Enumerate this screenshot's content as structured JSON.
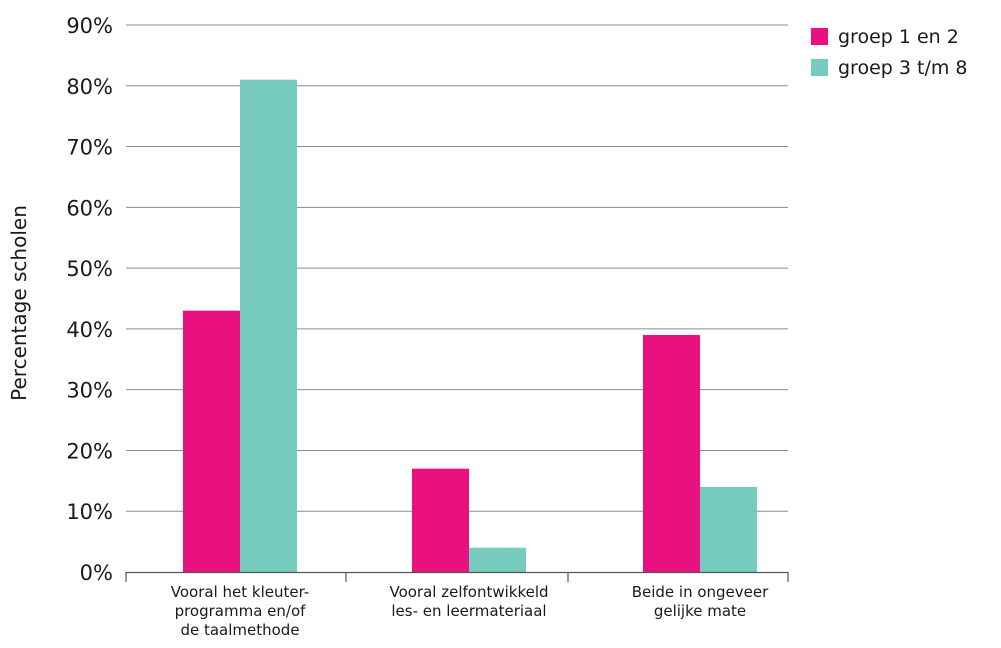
{
  "chart_data": {
    "type": "bar",
    "title": "",
    "xlabel": "",
    "ylabel": "Percentage scholen",
    "ylim": [
      0,
      90
    ],
    "yticks": [
      0,
      10,
      20,
      30,
      40,
      50,
      60,
      70,
      80,
      90
    ],
    "ytick_suffix": "%",
    "grid": true,
    "legend_position": "top-right",
    "categories": [
      [
        "Vooral het kleuter-",
        "programma en/of",
        "de taalmethode"
      ],
      [
        "Vooral zelfontwikkeld",
        "les- en leermateriaal"
      ],
      [
        "Beide in ongeveer",
        "gelijke mate"
      ]
    ],
    "series": [
      {
        "name": "groep 1 en 2",
        "color": "#e8117f",
        "values": [
          43,
          17,
          39
        ]
      },
      {
        "name": "groep 3 t/m 8",
        "color": "#77cbbe",
        "values": [
          81,
          4,
          14
        ]
      }
    ]
  }
}
